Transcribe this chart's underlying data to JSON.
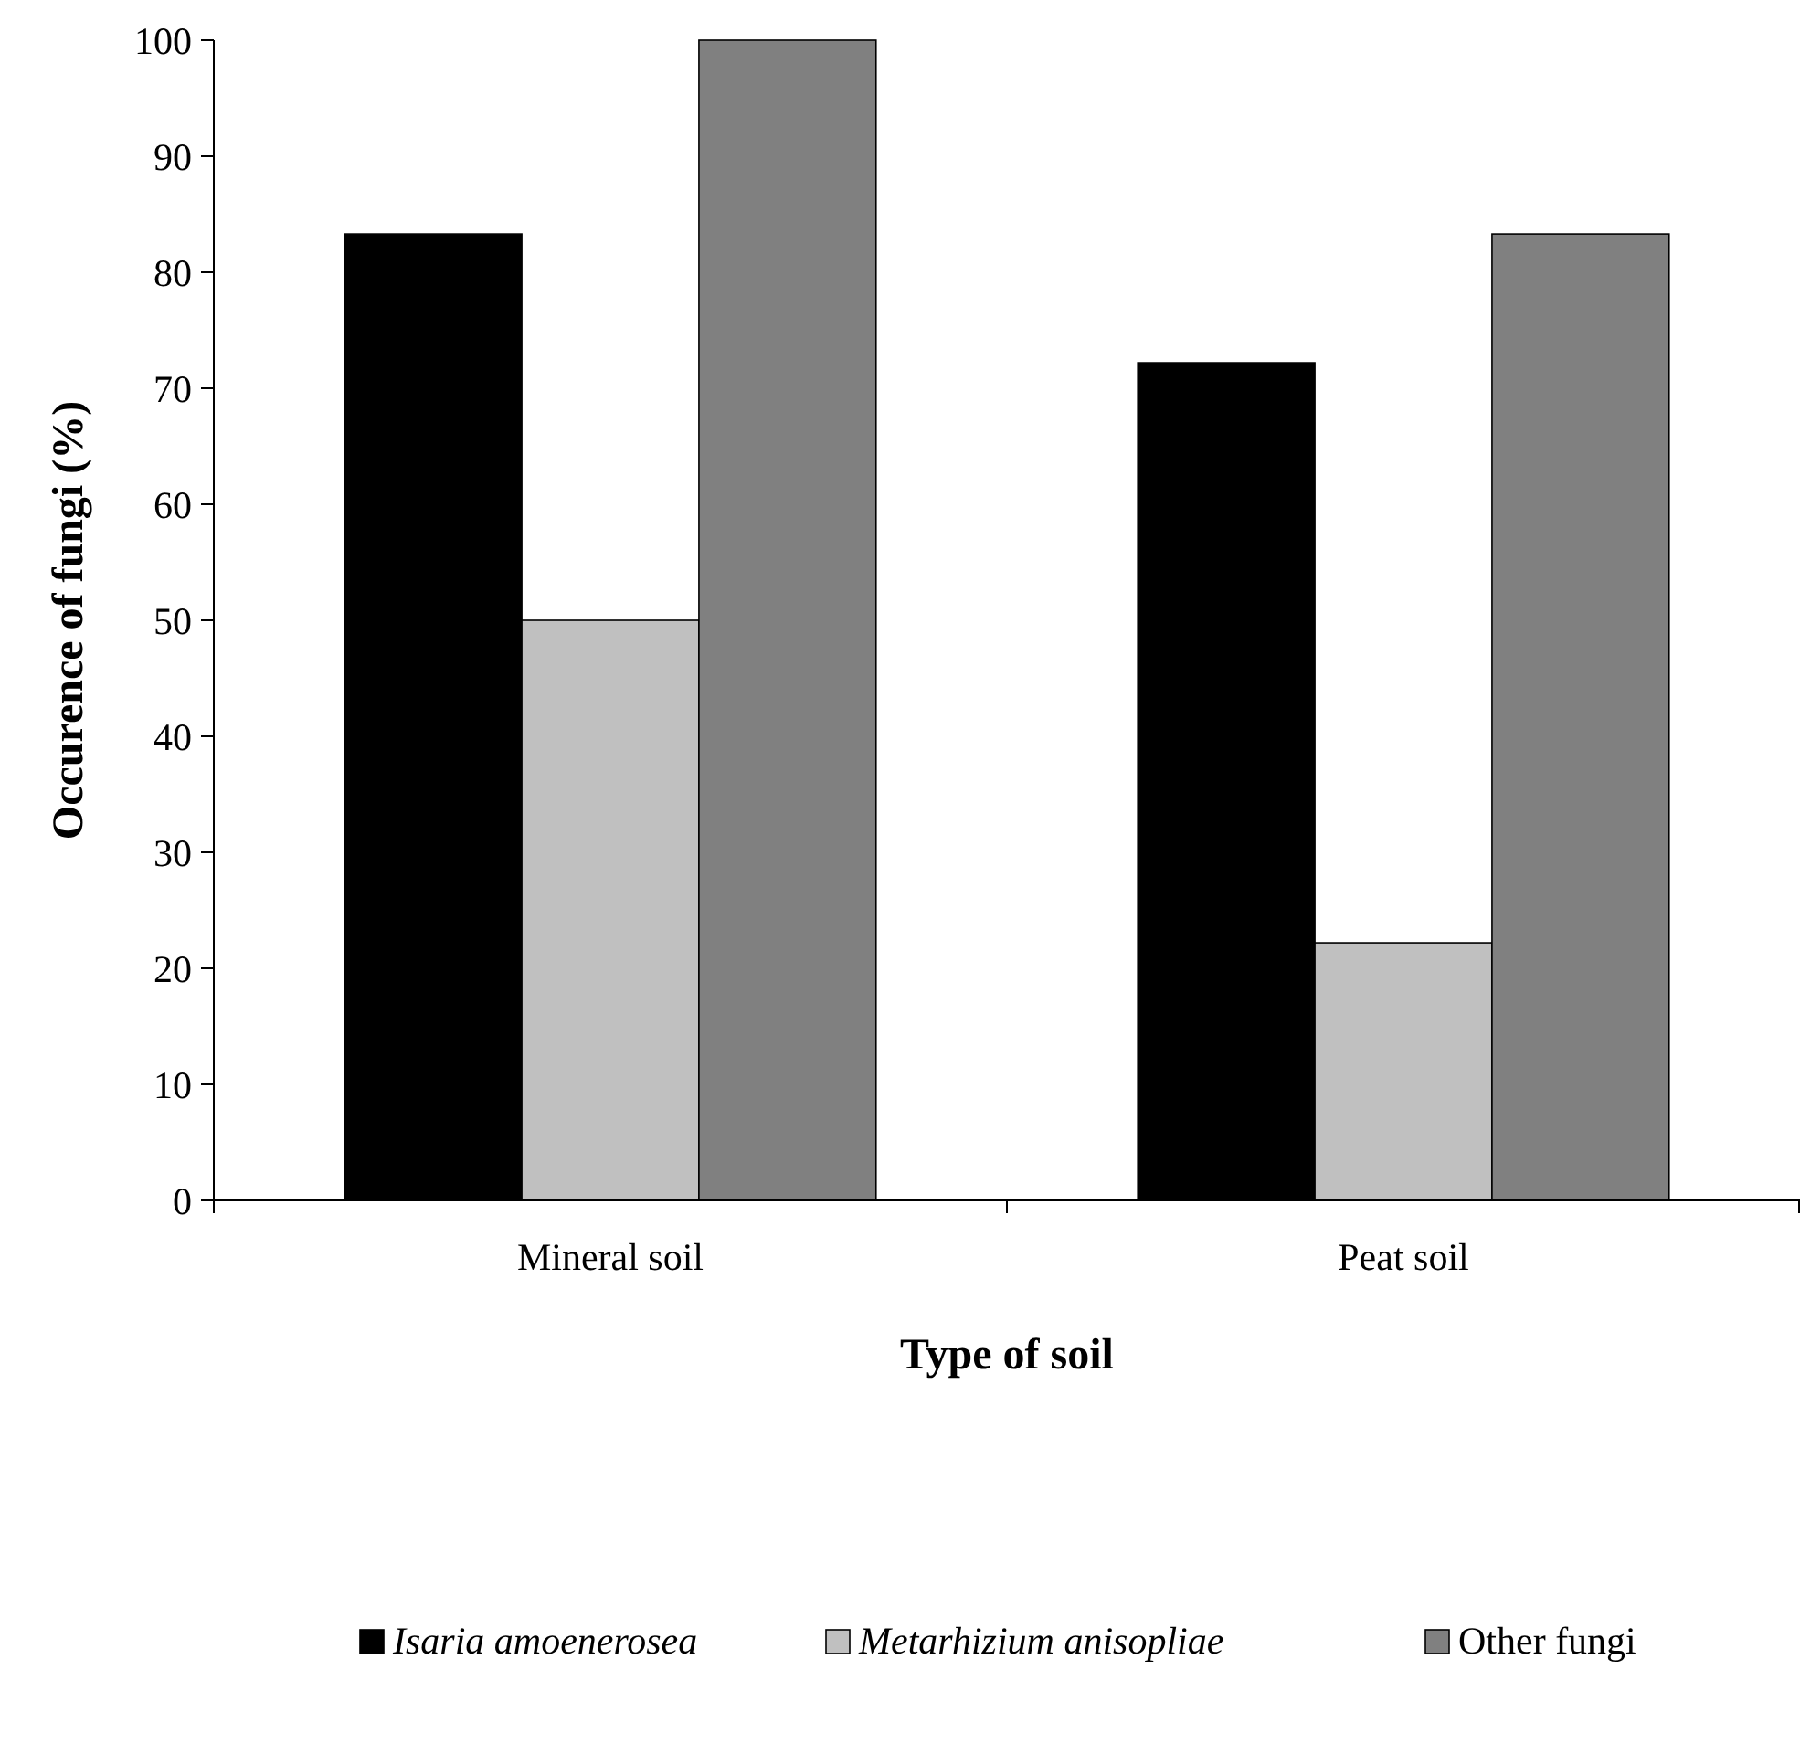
{
  "chart_data": {
    "type": "bar",
    "xlabel": "Type of soil",
    "ylabel": "Occurence of fungi (%)",
    "categories": [
      "Mineral soil",
      "Peat soil"
    ],
    "series": [
      {
        "name": "Isaria amoenerosea",
        "color": "#000000",
        "values": [
          83.3,
          72.2
        ]
      },
      {
        "name": "Metarhizium anisopliae",
        "color": "#c0c0c0",
        "values": [
          50,
          22.2
        ]
      },
      {
        "name": "Other fungi",
        "color": "#808080",
        "values": [
          100,
          83.3
        ]
      }
    ],
    "ylim": [
      0,
      100
    ],
    "yticks": [
      0,
      10,
      20,
      30,
      40,
      50,
      60,
      70,
      80,
      90,
      100
    ],
    "grid": false,
    "legend": "bottom"
  }
}
